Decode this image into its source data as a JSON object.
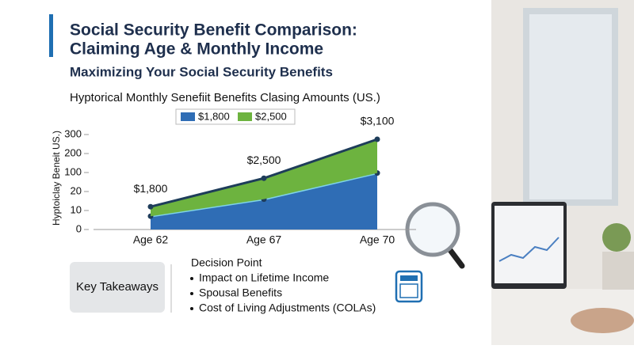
{
  "header": {
    "title_lines": [
      "Social Security Benefit Comparison:",
      "Claiming Age & Monthly Income"
    ],
    "subtitle": "Maximizing Your Social Security Benefits"
  },
  "chart_data": {
    "type": "stacked_area",
    "title": "Hyptorical Monthly Senefiit Benefits Clasing Amounts (US.)",
    "y_label": "Hyptoiclay Beneit US.)",
    "categories": [
      "Age 62",
      "Age 67",
      "Age 70"
    ],
    "series": [
      {
        "name": "$1,800",
        "color": "#2f6db5",
        "values": [
          7,
          16,
          98
        ]
      },
      {
        "name": "$2,500",
        "color": "#6db33f",
        "values": [
          5,
          60,
          177
        ]
      }
    ],
    "annotations": [
      "$1,800",
      "$2,500",
      "$3,100"
    ],
    "ylim": [
      0,
      300
    ],
    "yticks": [
      0,
      10,
      20,
      100,
      200,
      300
    ],
    "legend": "top"
  },
  "takeaways": {
    "label": "Key Takeaways",
    "heading": "Decision Point",
    "bullets": [
      "Impact on Lifetime Income",
      "Spousal Benefits",
      "Cost of Living Adjustments (COLAs)"
    ]
  }
}
